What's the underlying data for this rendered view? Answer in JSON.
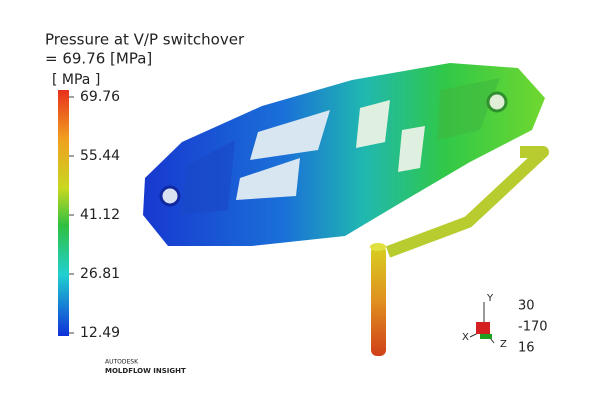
{
  "title": {
    "line1": "Pressure at V/P switchover",
    "line2": "= 69.76 [MPa]"
  },
  "legend": {
    "unit": "[ MPa ]",
    "ticks": [
      69.76,
      55.44,
      41.12,
      26.81,
      12.49
    ]
  },
  "triad": {
    "axes": [
      "Y",
      "X",
      "Z"
    ],
    "angles": [
      30,
      -170,
      16
    ]
  },
  "logo": {
    "brand": "AUTODESK",
    "product": "MOLDFLOW INSIGHT"
  }
}
